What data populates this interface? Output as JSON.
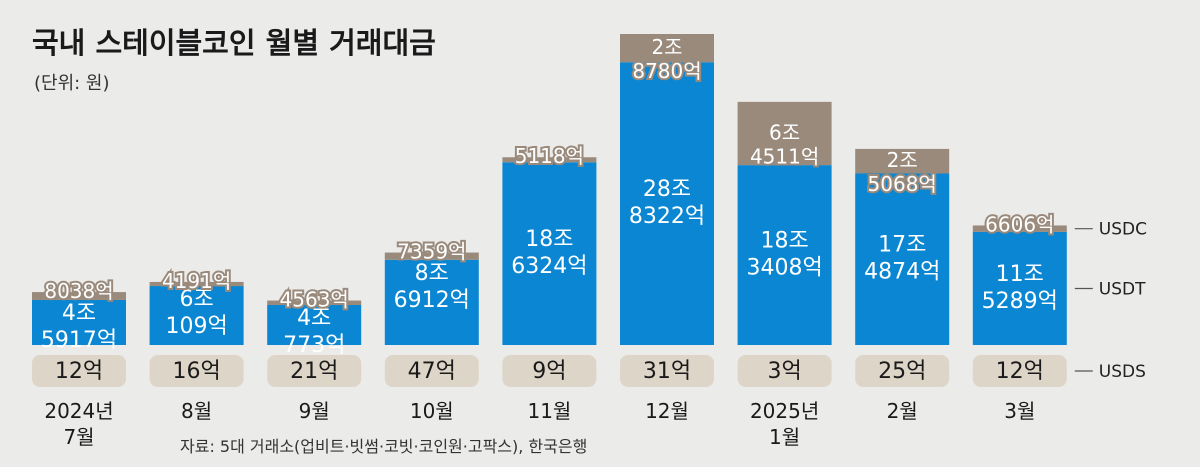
{
  "chart_data": {
    "type": "bar",
    "stacked": true,
    "title": "국내 스테이블코인 월별 거래대금",
    "unit": "(단위: 원)",
    "source": "자료: 5대 거래소(업비트·빗썸·코빗·코인원·고팍스), 한국은행",
    "categories": [
      "2024년 7월",
      "8월",
      "9월",
      "10월",
      "11월",
      "12월",
      "2025년 1월",
      "2월",
      "3월"
    ],
    "category_lines": [
      [
        "2024년",
        "7월"
      ],
      [
        "8월"
      ],
      [
        "9월"
      ],
      [
        "10월"
      ],
      [
        "11월"
      ],
      [
        "12월"
      ],
      [
        "2025년",
        "1월"
      ],
      [
        "2월"
      ],
      [
        "3월"
      ]
    ],
    "series": [
      {
        "name": "USDT",
        "color": "#0a86d2",
        "values_eok": [
          45917,
          60109,
          40773,
          86912,
          186324,
          288322,
          183408,
          174874,
          115289
        ],
        "labels": [
          [
            "4조",
            "5917억"
          ],
          [
            "6조",
            "109억"
          ],
          [
            "4조",
            "773억"
          ],
          [
            "8조",
            "6912억"
          ],
          [
            "18조",
            "6324억"
          ],
          [
            "28조",
            "8322억"
          ],
          [
            "18조",
            "3408억"
          ],
          [
            "17조",
            "4874억"
          ],
          [
            "11조",
            "5289억"
          ]
        ]
      },
      {
        "name": "USDC",
        "color": "#9a8a7c",
        "values_eok": [
          8038,
          4191,
          4563,
          7359,
          5118,
          28780,
          64511,
          25068,
          6606
        ],
        "labels": [
          [
            "8038억"
          ],
          [
            "4191억"
          ],
          [
            "4563억"
          ],
          [
            "7359억"
          ],
          [
            "5118억"
          ],
          [
            "2조",
            "8780억"
          ],
          [
            "6조",
            "4511억"
          ],
          [
            "2조",
            "5068억"
          ],
          [
            "6606억"
          ]
        ]
      },
      {
        "name": "USDS",
        "color": "#ddd5c8",
        "values_eok": [
          12,
          16,
          21,
          47,
          9,
          31,
          3,
          25,
          12
        ],
        "labels": [
          "12억",
          "16억",
          "21억",
          "47억",
          "9억",
          "31억",
          "3억",
          "25억",
          "12억"
        ]
      }
    ],
    "ylim_eok": [
      0,
      317102
    ],
    "grid": false,
    "legend": "right"
  }
}
